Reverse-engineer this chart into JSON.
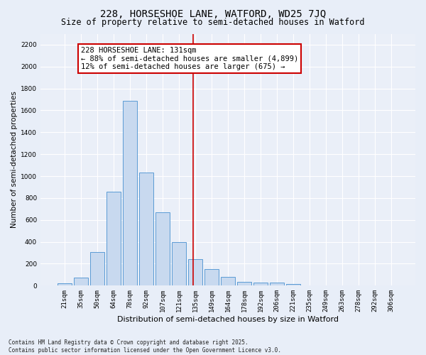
{
  "title1": "228, HORSESHOE LANE, WATFORD, WD25 7JQ",
  "title2": "Size of property relative to semi-detached houses in Watford",
  "xlabel": "Distribution of semi-detached houses by size in Watford",
  "ylabel": "Number of semi-detached properties",
  "categories": [
    "21sqm",
    "35sqm",
    "50sqm",
    "64sqm",
    "78sqm",
    "92sqm",
    "107sqm",
    "121sqm",
    "135sqm",
    "149sqm",
    "164sqm",
    "178sqm",
    "192sqm",
    "206sqm",
    "221sqm",
    "235sqm",
    "249sqm",
    "263sqm",
    "278sqm",
    "292sqm",
    "306sqm"
  ],
  "values": [
    20,
    75,
    310,
    860,
    1690,
    1030,
    670,
    400,
    245,
    150,
    80,
    35,
    25,
    30,
    15,
    5,
    2,
    0,
    0,
    0,
    5
  ],
  "bar_color": "#c8d9ef",
  "bar_edge_color": "#5b9bd5",
  "vline_color": "#cc0000",
  "annotation_text": "228 HORSESHOE LANE: 131sqm\n← 88% of semi-detached houses are smaller (4,899)\n12% of semi-detached houses are larger (675) →",
  "annotation_box_color": "#ffffff",
  "annotation_box_edge": "#cc0000",
  "ylim": [
    0,
    2300
  ],
  "yticks": [
    0,
    200,
    400,
    600,
    800,
    1000,
    1200,
    1400,
    1600,
    1800,
    2000,
    2200
  ],
  "bg_color": "#e8eef8",
  "plot_bg_color": "#eaeff8",
  "footer": "Contains HM Land Registry data © Crown copyright and database right 2025.\nContains public sector information licensed under the Open Government Licence v3.0.",
  "title1_fontsize": 10,
  "title2_fontsize": 8.5,
  "xlabel_fontsize": 8,
  "ylabel_fontsize": 7.5,
  "tick_fontsize": 6.5,
  "annotation_fontsize": 7.5,
  "footer_fontsize": 5.5
}
